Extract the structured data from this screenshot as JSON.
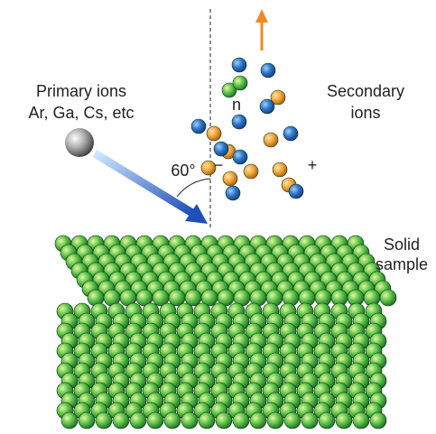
{
  "labels": {
    "primary": [
      "Primary ions",
      "Ar, Ga, Cs, etc"
    ],
    "angle": "60°",
    "n": "n",
    "minus": "−",
    "plus": "+",
    "secondary": [
      "Secondary",
      "ions"
    ],
    "sample": [
      "Solid",
      "sample"
    ]
  }
}
